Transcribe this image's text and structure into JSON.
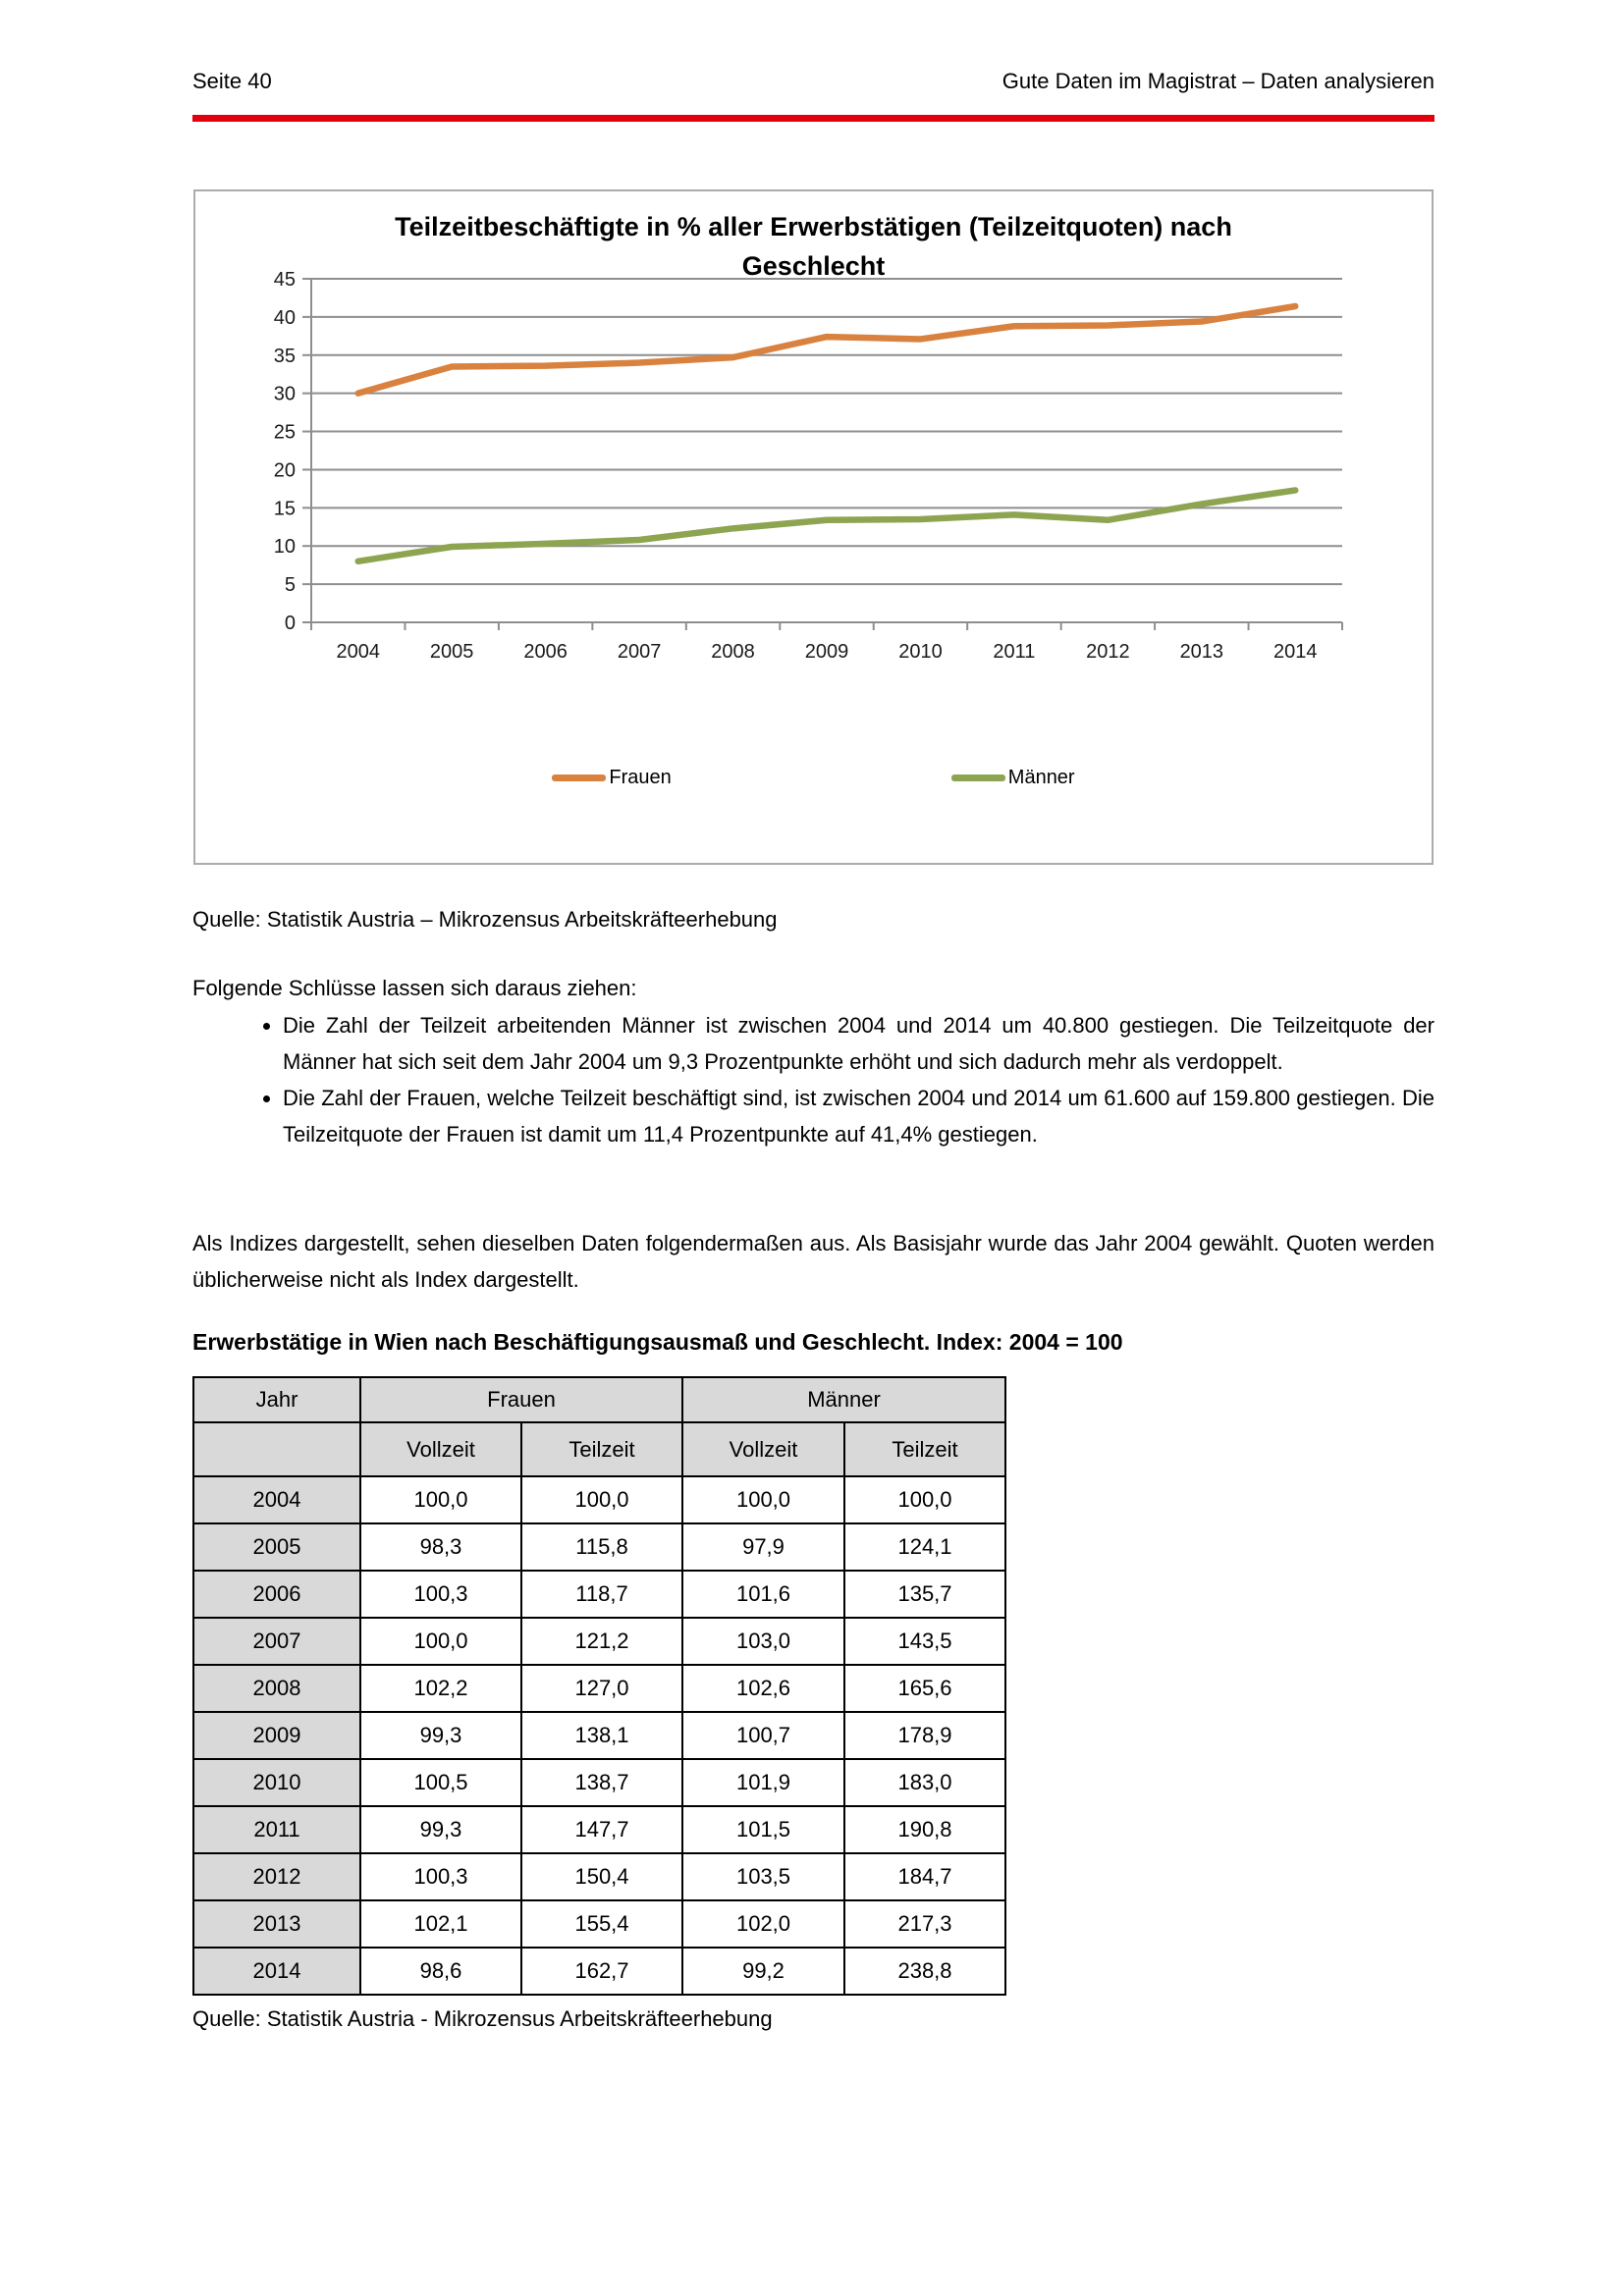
{
  "header": {
    "page_label": "Seite 40",
    "document_title": "Gute Daten im Magistrat – Daten analysieren",
    "rule_color": "#e2000f"
  },
  "chart_data": {
    "type": "line",
    "title": "Teilzeitbeschäftigte in % aller Erwerbstätigen (Teilzeitquoten) nach Geschlecht",
    "title_lines": [
      "Teilzeitbeschäftigte in % aller Erwerbstätigen (Teilzeitquoten) nach",
      "Geschlecht"
    ],
    "x": [
      2004,
      2005,
      2006,
      2007,
      2008,
      2009,
      2010,
      2011,
      2012,
      2013,
      2014
    ],
    "series": [
      {
        "name": "Frauen",
        "color": "#d9823f",
        "values": [
          30.0,
          33.5,
          33.6,
          34.0,
          34.7,
          37.4,
          37.1,
          38.8,
          38.9,
          39.4,
          41.4
        ]
      },
      {
        "name": "Männer",
        "color": "#8da450",
        "values": [
          8.0,
          9.9,
          10.3,
          10.8,
          12.3,
          13.4,
          13.5,
          14.1,
          13.4,
          15.5,
          17.3
        ]
      }
    ],
    "ylim": [
      0,
      45
    ],
    "ytick_step": 5,
    "grid": true,
    "gridline_color": "#8e8e8e",
    "legend_position": "bottom"
  },
  "chart_source": "Quelle: Statistik Austria – Mikrozensus Arbeitskräfteerhebung",
  "analysis": {
    "intro": "Folgende Schlüsse lassen sich daraus ziehen:",
    "bullets": [
      "Die Zahl der Teilzeit arbeitenden Männer ist zwischen 2004 und 2014 um 40.800 gestiegen. Die Teilzeitquote der Männer hat sich seit dem Jahr 2004 um 9,3 Prozentpunkte erhöht und sich dadurch mehr als verdoppelt.",
      "Die Zahl der Frauen, welche Teilzeit beschäftigt sind, ist zwischen 2004 und 2014 um 61.600 auf 159.800 gestiegen. Die Teilzeitquote der Frauen ist damit um 11,4 Prozentpunkte auf 41,4% gestiegen."
    ],
    "index_note": "Als Indizes dargestellt, sehen dieselben Daten folgendermaßen aus. Als Basisjahr wurde das Jahr 2004 gewählt. Quoten werden üblicherweise nicht als Index dargestellt."
  },
  "table": {
    "heading": "Erwerbstätige in Wien nach Beschäftigungsausmaß und Geschlecht. Index: 2004 = 100",
    "group_headers": {
      "col1": "Jahr",
      "frauen": "Frauen",
      "maenner": "Männer"
    },
    "sub_headers": {
      "frauen_vollzeit": "Vollzeit",
      "frauen_teilzeit": "Teilzeit",
      "maenner_vollzeit": "Vollzeit",
      "maenner_teilzeit": "Teilzeit"
    },
    "rows": [
      {
        "jahr": "2004",
        "values": [
          "100,0",
          "100,0",
          "100,0",
          "100,0"
        ]
      },
      {
        "jahr": "2005",
        "values": [
          "98,3",
          "115,8",
          "97,9",
          "124,1"
        ]
      },
      {
        "jahr": "2006",
        "values": [
          "100,3",
          "118,7",
          "101,6",
          "135,7"
        ]
      },
      {
        "jahr": "2007",
        "values": [
          "100,0",
          "121,2",
          "103,0",
          "143,5"
        ]
      },
      {
        "jahr": "2008",
        "values": [
          "102,2",
          "127,0",
          "102,6",
          "165,6"
        ]
      },
      {
        "jahr": "2009",
        "values": [
          "99,3",
          "138,1",
          "100,7",
          "178,9"
        ]
      },
      {
        "jahr": "2010",
        "values": [
          "100,5",
          "138,7",
          "101,9",
          "183,0"
        ]
      },
      {
        "jahr": "2011",
        "values": [
          "99,3",
          "147,7",
          "101,5",
          "190,8"
        ]
      },
      {
        "jahr": "2012",
        "values": [
          "100,3",
          "150,4",
          "103,5",
          "184,7"
        ]
      },
      {
        "jahr": "2013",
        "values": [
          "102,1",
          "155,4",
          "102,0",
          "217,3"
        ]
      },
      {
        "jahr": "2014",
        "values": [
          "98,6",
          "162,7",
          "99,2",
          "238,8"
        ]
      }
    ],
    "header_bg": "#d9d9d9"
  },
  "table_source": "Quelle: Statistik Austria - Mikrozensus Arbeitskräfteerhebung"
}
